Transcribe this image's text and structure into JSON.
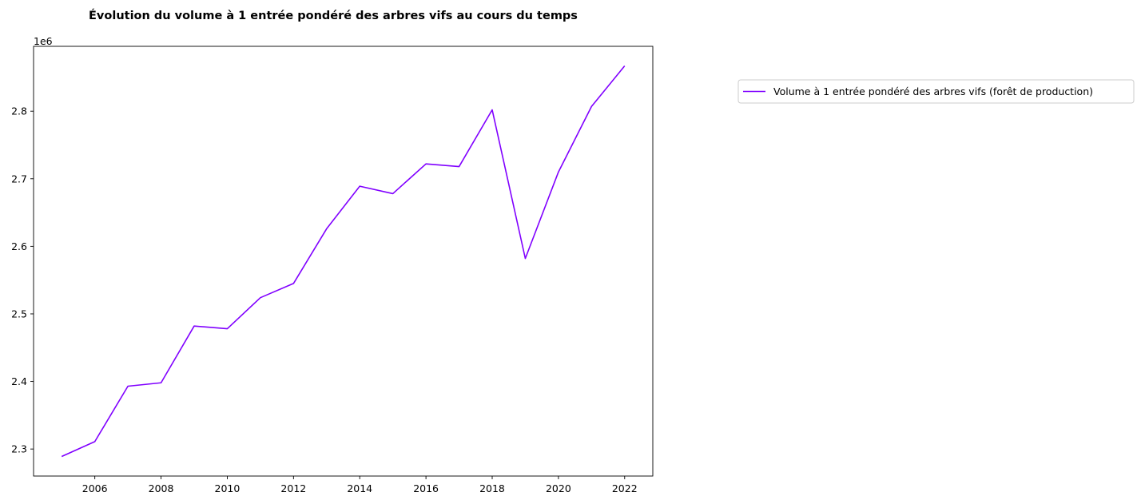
{
  "chart_data": {
    "type": "line",
    "title": "Évolution du volume à 1 entrée pondéré des arbres vifs au cours du temps",
    "xlabel": "",
    "ylabel": "",
    "y_offset_label": "1e6",
    "x": [
      2005,
      2006,
      2007,
      2008,
      2009,
      2010,
      2011,
      2012,
      2013,
      2014,
      2015,
      2016,
      2017,
      2018,
      2019,
      2020,
      2021,
      2022
    ],
    "series": [
      {
        "name": "Volume à 1 entrée pondéré des arbres vifs (forêt de production)",
        "color": "#8000ff",
        "values": [
          2.289,
          2.311,
          2.393,
          2.398,
          2.482,
          2.478,
          2.524,
          2.545,
          2.626,
          2.689,
          2.678,
          2.722,
          2.718,
          2.802,
          2.582,
          2.71,
          2.807,
          2.867
        ]
      }
    ],
    "xlim": [
      2004.15,
      2022.85
    ],
    "ylim": [
      2.26,
      2.896
    ],
    "x_ticks": [
      2006,
      2008,
      2010,
      2012,
      2014,
      2016,
      2018,
      2020,
      2022
    ],
    "x_tick_labels": [
      "2006",
      "2008",
      "2010",
      "2012",
      "2014",
      "2016",
      "2018",
      "2020",
      "2022"
    ],
    "y_ticks": [
      2.3,
      2.4,
      2.5,
      2.6,
      2.7,
      2.8
    ],
    "y_tick_labels": [
      "2.3",
      "2.4",
      "2.5",
      "2.6",
      "2.7",
      "2.8"
    ],
    "grid": false,
    "legend_position": "outside-right-top"
  }
}
